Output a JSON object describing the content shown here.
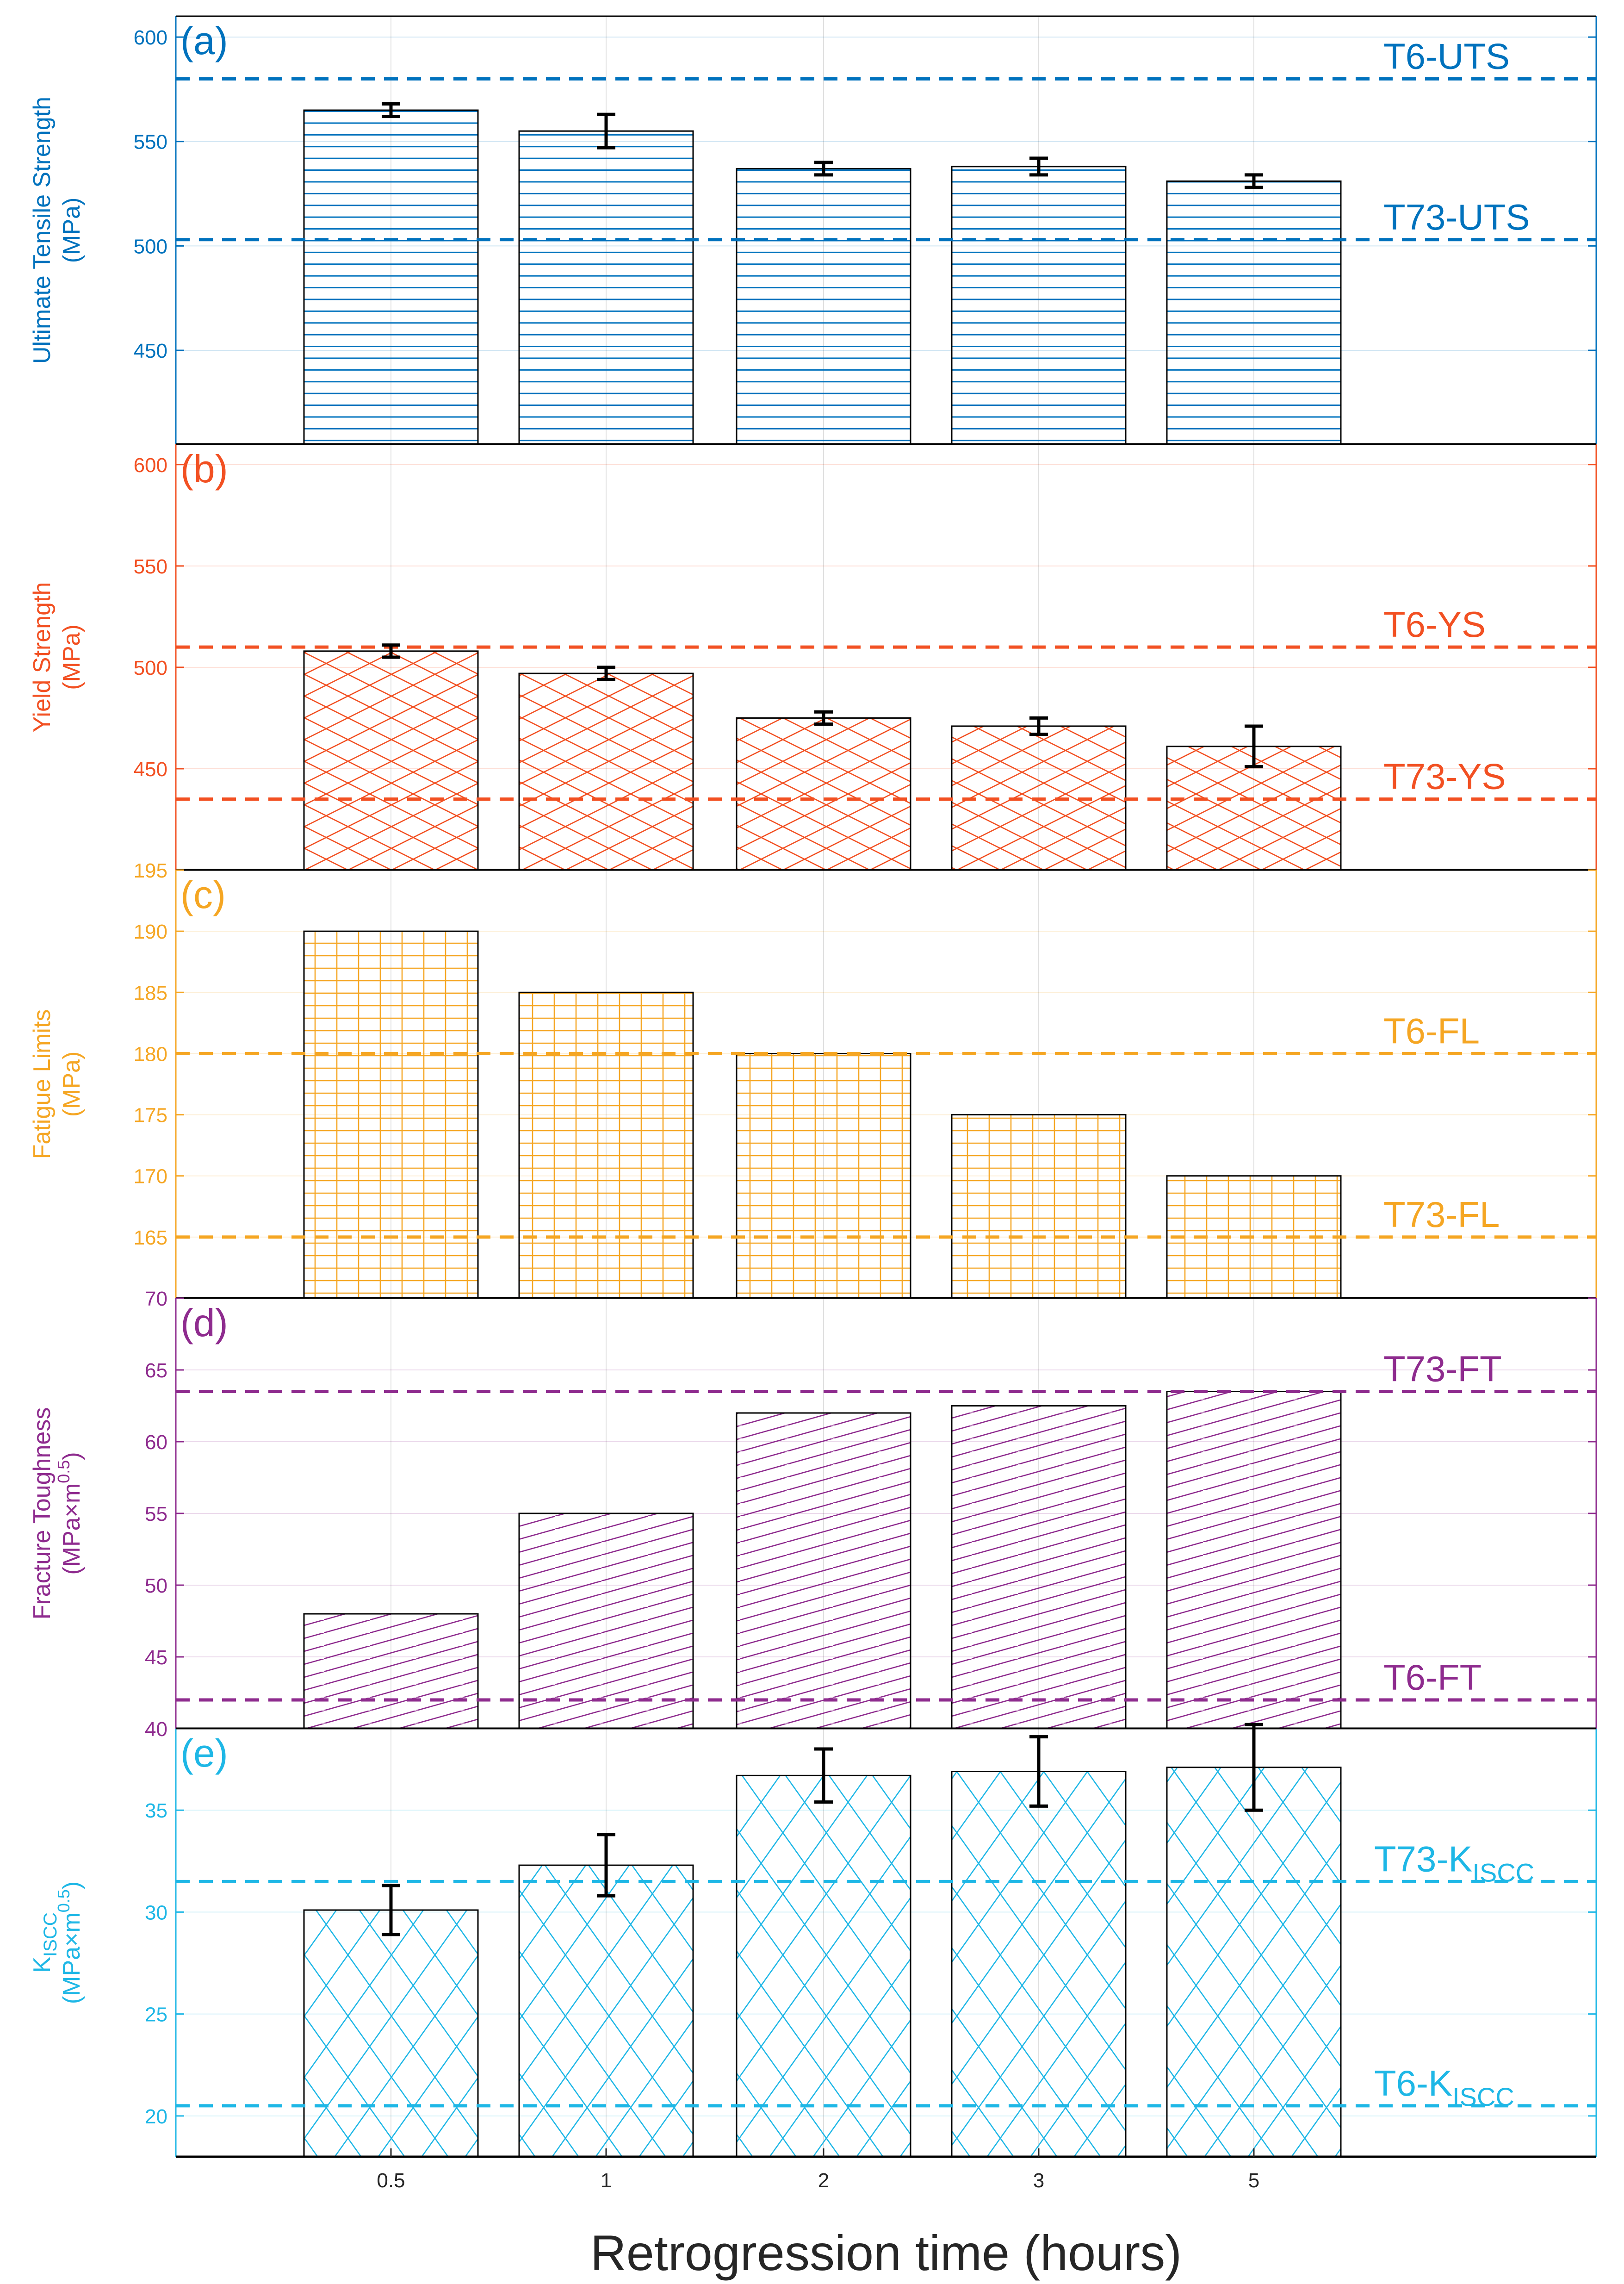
{
  "chart_data": [
    {
      "type": "bar",
      "panel": "(a)",
      "ylabel_lines": [
        "Ultimate Tensile Strength",
        "(MPa)"
      ],
      "color": "#0072BD",
      "hatch": "horizontal",
      "categories": [
        "0.5",
        "1",
        "2",
        "3",
        "5"
      ],
      "values": [
        565,
        555,
        537,
        538,
        531
      ],
      "errors": [
        3,
        8,
        3,
        4,
        3
      ],
      "ylim": [
        405,
        610
      ],
      "yticks": [
        450,
        500,
        550,
        600
      ],
      "ref_lines": [
        {
          "name": "T6-UTS",
          "label": "T6-UTS",
          "value": 580
        },
        {
          "name": "T73-UTS",
          "label": "T73-UTS",
          "value": 503
        }
      ]
    },
    {
      "type": "bar",
      "panel": "(b)",
      "ylabel_lines": [
        "Yield Strength",
        "(MPa)"
      ],
      "color": "#F25022",
      "hatch": "cross",
      "categories": [
        "0.5",
        "1",
        "2",
        "3",
        "5"
      ],
      "values": [
        508,
        497,
        475,
        471,
        461
      ],
      "errors": [
        3,
        3,
        3,
        4,
        10
      ],
      "ylim": [
        400,
        610
      ],
      "yticks": [
        450,
        500,
        550,
        600
      ],
      "ref_lines": [
        {
          "name": "T6-YS",
          "label": "T6-YS",
          "value": 510
        },
        {
          "name": "T73-YS",
          "label": "T73-YS",
          "value": 435
        }
      ]
    },
    {
      "type": "bar",
      "panel": "(c)",
      "ylabel_lines": [
        "Fatigue Limits",
        "(MPa)"
      ],
      "color": "#F5A623",
      "hatch": "grid",
      "categories": [
        "0.5",
        "1",
        "2",
        "3",
        "5"
      ],
      "values": [
        190,
        185,
        180,
        175,
        170
      ],
      "errors": [
        0,
        0,
        0,
        0,
        0
      ],
      "ylim": [
        160,
        195
      ],
      "yticks": [
        165,
        170,
        175,
        180,
        185,
        190,
        195
      ],
      "ref_lines": [
        {
          "name": "T6-FL",
          "label": "T6-FL",
          "value": 180
        },
        {
          "name": "T73-FL",
          "label": "T73-FL",
          "value": 165
        }
      ]
    },
    {
      "type": "bar",
      "panel": "(d)",
      "ylabel_lines": [
        "Fracture Toughness",
        "(MPa×m^0.5)"
      ],
      "color": "#8E2B8E",
      "hatch": "diagonal",
      "categories": [
        "0.5",
        "1",
        "2",
        "3",
        "5"
      ],
      "values": [
        48,
        55,
        62,
        62.5,
        63.5
      ],
      "errors": [
        0,
        0,
        0,
        0,
        0
      ],
      "ylim": [
        40,
        70
      ],
      "yticks": [
        40,
        45,
        50,
        55,
        60,
        65,
        70
      ],
      "ref_lines": [
        {
          "name": "T73-FT",
          "label": "T73-FT",
          "value": 63.5
        },
        {
          "name": "T6-FT",
          "label": "T6-FT",
          "value": 42
        }
      ]
    },
    {
      "type": "bar",
      "panel": "(e)",
      "ylabel_lines": [
        "K_ISCC",
        "(MPa×m^0.5)"
      ],
      "color": "#1EB7E6",
      "hatch": "diamond",
      "categories": [
        "0.5",
        "1",
        "2",
        "3",
        "5"
      ],
      "values": [
        30.1,
        32.3,
        36.7,
        36.9,
        37.1
      ],
      "errors": [
        1.2,
        1.5,
        1.3,
        1.7,
        2.1
      ],
      "ylim": [
        18,
        39
      ],
      "yticks": [
        20,
        25,
        30,
        35
      ],
      "ref_lines": [
        {
          "name": "T73-KISCC",
          "label": "T73-K",
          "label_sub": "ISCC",
          "value": 31.5
        },
        {
          "name": "T6-KISCC",
          "label": "T6-K",
          "label_sub": "ISCC",
          "value": 20.5
        }
      ]
    }
  ],
  "xlabel": "Retrogression time (hours)"
}
